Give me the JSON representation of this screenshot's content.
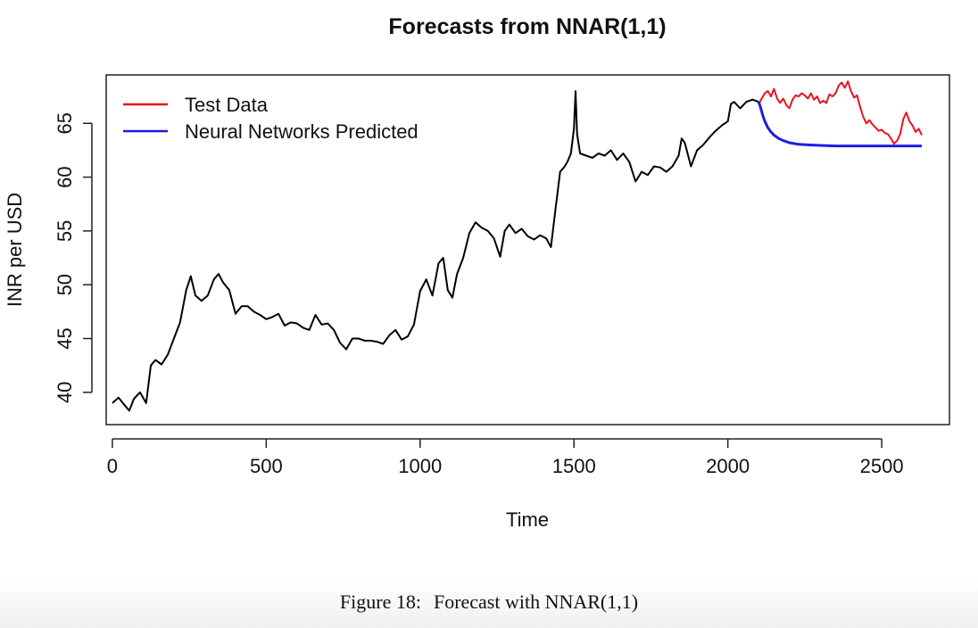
{
  "chart_data": {
    "type": "line",
    "title": "Forecasts from NNAR(1,1)",
    "xlabel": "Time",
    "ylabel": "INR per USD",
    "xlim": [
      -20,
      2720
    ],
    "ylim": [
      37,
      69.5
    ],
    "xticks": [
      0,
      500,
      1000,
      1500,
      2000,
      2500
    ],
    "yticks": [
      40,
      45,
      50,
      55,
      60,
      65
    ],
    "grid": false,
    "legend_position": "top-left",
    "series": [
      {
        "name": "",
        "color": "#000000",
        "x": [
          0,
          20,
          40,
          55,
          70,
          90,
          110,
          125,
          140,
          160,
          180,
          200,
          220,
          240,
          255,
          270,
          290,
          310,
          330,
          345,
          360,
          380,
          400,
          420,
          440,
          460,
          480,
          500,
          520,
          540,
          560,
          580,
          600,
          620,
          640,
          660,
          680,
          700,
          720,
          740,
          760,
          780,
          800,
          820,
          840,
          860,
          880,
          900,
          920,
          940,
          960,
          980,
          1000,
          1020,
          1040,
          1060,
          1075,
          1090,
          1105,
          1120,
          1140,
          1160,
          1180,
          1200,
          1220,
          1240,
          1260,
          1275,
          1290,
          1310,
          1330,
          1350,
          1370,
          1390,
          1410,
          1425,
          1440,
          1455,
          1470,
          1480,
          1490,
          1500,
          1505,
          1510,
          1520,
          1540,
          1560,
          1580,
          1600,
          1620,
          1640,
          1660,
          1680,
          1700,
          1720,
          1740,
          1760,
          1780,
          1800,
          1820,
          1840,
          1850,
          1860,
          1880,
          1900,
          1920,
          1940,
          1960,
          1980,
          2000,
          2010,
          2020,
          2040,
          2060,
          2080,
          2100
        ],
        "values": [
          39.0,
          39.5,
          38.8,
          38.3,
          39.4,
          40.0,
          39.0,
          42.5,
          43.0,
          42.6,
          43.5,
          45.0,
          46.5,
          49.5,
          50.8,
          49.0,
          48.5,
          49.0,
          50.5,
          51.0,
          50.2,
          49.5,
          47.3,
          48.0,
          48.0,
          47.5,
          47.2,
          46.8,
          47.0,
          47.3,
          46.2,
          46.5,
          46.4,
          46.0,
          45.8,
          47.2,
          46.3,
          46.4,
          45.8,
          44.6,
          44.0,
          45.0,
          45.0,
          44.8,
          44.8,
          44.7,
          44.5,
          45.3,
          45.8,
          44.9,
          45.2,
          46.3,
          49.4,
          50.5,
          49.0,
          52.0,
          52.5,
          49.5,
          48.8,
          51.0,
          52.5,
          54.8,
          55.8,
          55.3,
          55.0,
          54.3,
          52.6,
          55.0,
          55.6,
          54.8,
          55.2,
          54.5,
          54.2,
          54.6,
          54.3,
          53.5,
          57.0,
          60.5,
          61.0,
          61.5,
          62.2,
          64.5,
          68.0,
          64.0,
          62.2,
          62.0,
          61.8,
          62.2,
          62.0,
          62.5,
          61.6,
          62.2,
          61.4,
          59.6,
          60.5,
          60.2,
          61.0,
          60.9,
          60.5,
          61.0,
          62.0,
          63.6,
          63.2,
          61.0,
          62.5,
          63.0,
          63.7,
          64.3,
          64.8,
          65.2,
          66.8,
          67.0,
          66.4,
          67.0,
          67.2,
          67.0
        ]
      },
      {
        "name": "Test Data",
        "color": "#e8141c",
        "x": [
          2100,
          2110,
          2120,
          2130,
          2140,
          2150,
          2160,
          2170,
          2180,
          2190,
          2200,
          2210,
          2220,
          2230,
          2240,
          2250,
          2260,
          2270,
          2280,
          2290,
          2300,
          2310,
          2320,
          2330,
          2340,
          2350,
          2360,
          2370,
          2380,
          2390,
          2400,
          2410,
          2420,
          2430,
          2440,
          2450,
          2460,
          2470,
          2480,
          2490,
          2500,
          2510,
          2520,
          2530,
          2540,
          2550,
          2560,
          2570,
          2580,
          2590,
          2600,
          2610,
          2620,
          2630
        ],
        "values": [
          66.8,
          67.3,
          67.8,
          68.0,
          67.5,
          68.2,
          67.3,
          66.9,
          67.3,
          66.7,
          66.4,
          67.2,
          67.6,
          67.5,
          67.8,
          67.6,
          67.3,
          67.8,
          67.2,
          67.5,
          66.9,
          67.1,
          66.9,
          67.7,
          67.5,
          67.8,
          68.5,
          68.8,
          68.3,
          68.9,
          68.0,
          67.4,
          67.6,
          66.5,
          65.6,
          65.0,
          65.3,
          64.9,
          64.6,
          64.3,
          64.4,
          64.1,
          64.0,
          63.6,
          63.1,
          63.4,
          64.0,
          65.4,
          66.0,
          65.2,
          64.8,
          64.2,
          64.5,
          63.9
        ]
      },
      {
        "name": "Neural Networks Predicted",
        "color": "#1c1ce8",
        "x": [
          2100,
          2105,
          2110,
          2115,
          2120,
          2130,
          2140,
          2150,
          2165,
          2180,
          2200,
          2230,
          2260,
          2300,
          2350,
          2400,
          2450,
          2500,
          2550,
          2600,
          2630
        ],
        "values": [
          67.0,
          66.6,
          66.1,
          65.6,
          65.2,
          64.6,
          64.2,
          63.9,
          63.6,
          63.4,
          63.2,
          63.05,
          63.0,
          62.95,
          62.9,
          62.9,
          62.9,
          62.9,
          62.9,
          62.9,
          62.9
        ]
      }
    ]
  },
  "caption": {
    "label": "Figure 18:",
    "text": "Forecast with NNAR(1,1)"
  }
}
